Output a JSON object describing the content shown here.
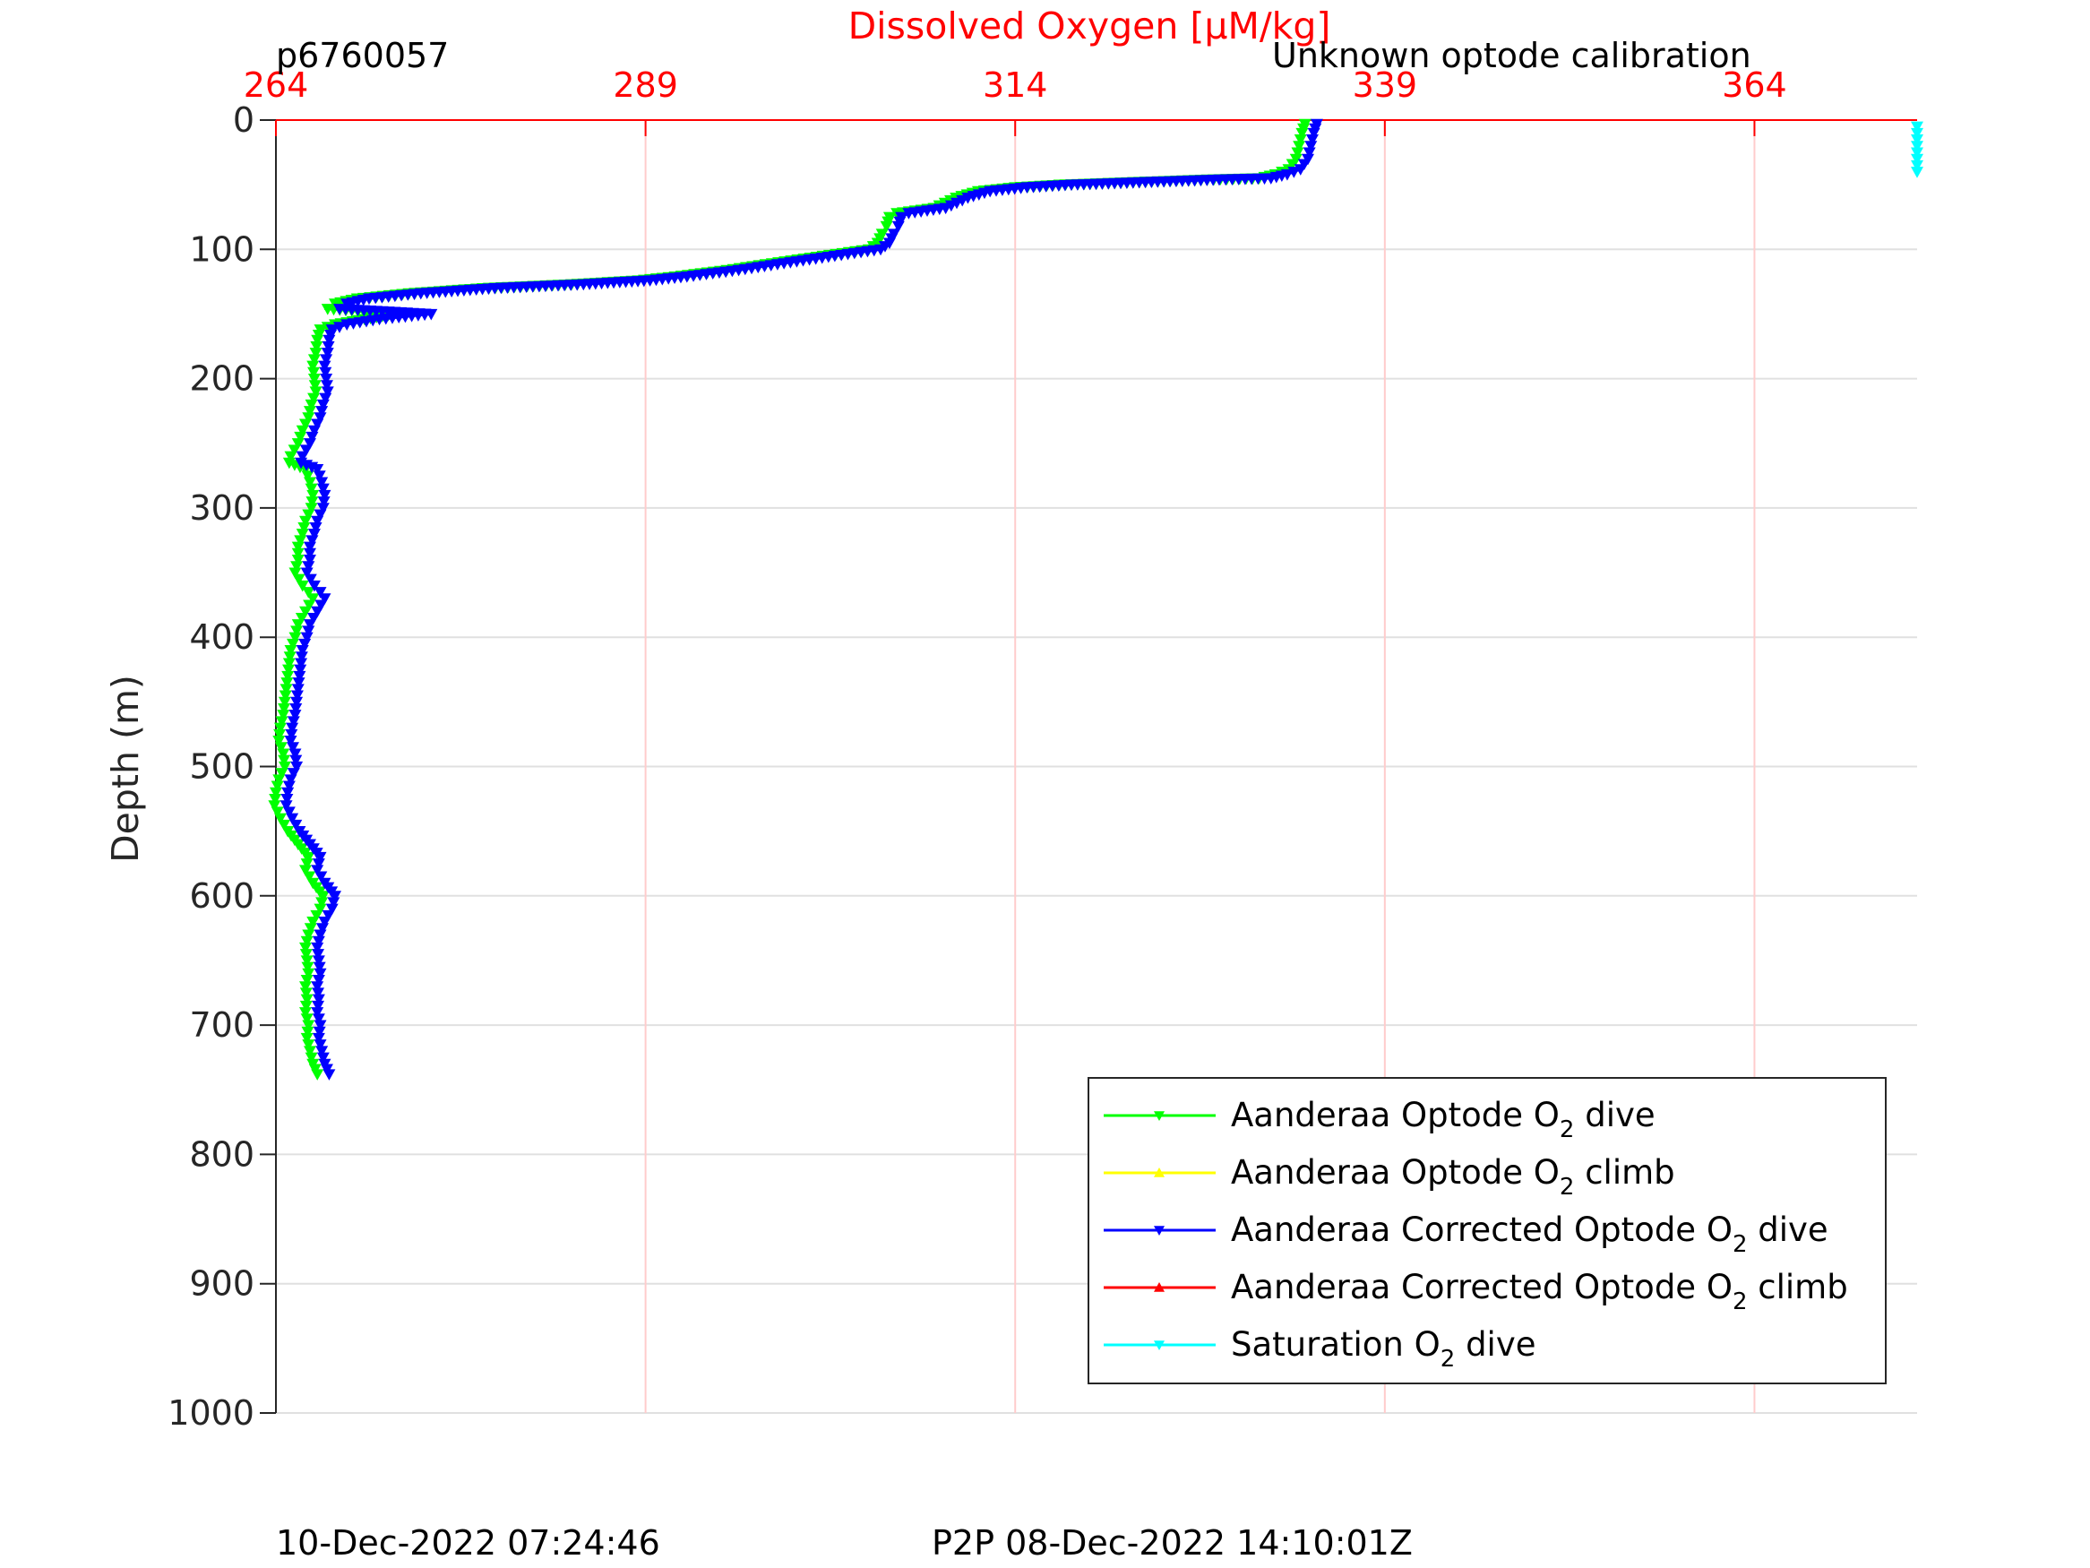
{
  "header": {
    "profile_id": "p6760057",
    "calibration_note": "Unknown optode calibration"
  },
  "footer": {
    "timestamp": "10-Dec-2022 07:24:46",
    "p2p": "P2P 08-Dec-2022 14:10:01Z"
  },
  "colors": {
    "top_axis": "#ff0000",
    "grid": "#e0e0e0",
    "top_grid": "#ffcccc",
    "axis": "#262626"
  },
  "chart_data": {
    "type": "line",
    "title": "",
    "xlabel_top": "Dissolved Oxygen [μM/kg]",
    "ylabel": "Depth (m)",
    "xlim": [
      264,
      375
    ],
    "ylim": [
      1000,
      0
    ],
    "y_reversed": true,
    "x_ticks": [
      264,
      289,
      314,
      339,
      364
    ],
    "x_tick_labels": [
      "264",
      "289",
      "314",
      "339",
      "364"
    ],
    "y_ticks": [
      0,
      100,
      200,
      300,
      400,
      500,
      600,
      700,
      800,
      900,
      1000
    ],
    "y_tick_labels": [
      "0",
      "100",
      "200",
      "300",
      "400",
      "500",
      "600",
      "700",
      "800",
      "900",
      "1000"
    ],
    "grid": true,
    "legend_position": "bottom-right",
    "series": [
      {
        "name": "Aanderaa Optode O2 dive",
        "legend_main": "Aanderaa Optode O",
        "legend_sub": "2",
        "legend_tail": " dive",
        "color": "#00ff00",
        "marker": "triangle-down",
        "points": [
          [
            333.6,
            3
          ],
          [
            333.4,
            10
          ],
          [
            333.2,
            20
          ],
          [
            333.0,
            30
          ],
          [
            332.5,
            38
          ],
          [
            331.6,
            42
          ],
          [
            330.5,
            45
          ],
          [
            327.0,
            46
          ],
          [
            322.0,
            48
          ],
          [
            317.0,
            50
          ],
          [
            314.0,
            52
          ],
          [
            311.5,
            55
          ],
          [
            310.0,
            60
          ],
          [
            308.5,
            68
          ],
          [
            306.0,
            72
          ],
          [
            305.5,
            75
          ],
          [
            305.3,
            82
          ],
          [
            305.0,
            88
          ],
          [
            304.7,
            95
          ],
          [
            304.1,
            100
          ],
          [
            301.0,
            105
          ],
          [
            298.0,
            110
          ],
          [
            294.5,
            116
          ],
          [
            291.0,
            121
          ],
          [
            288.5,
            124
          ],
          [
            284.0,
            127
          ],
          [
            278.0,
            130
          ],
          [
            273.0,
            134
          ],
          [
            269.5,
            138
          ],
          [
            268.0,
            142
          ],
          [
            267.5,
            146
          ],
          [
            272.0,
            150
          ],
          [
            270.0,
            154
          ],
          [
            268.0,
            158
          ],
          [
            267.0,
            162
          ],
          [
            266.8,
            170
          ],
          [
            266.7,
            180
          ],
          [
            266.5,
            190
          ],
          [
            266.6,
            200
          ],
          [
            266.7,
            210
          ],
          [
            266.4,
            220
          ],
          [
            266.2,
            230
          ],
          [
            265.8,
            240
          ],
          [
            265.5,
            250
          ],
          [
            265.0,
            260
          ],
          [
            264.9,
            265
          ],
          [
            266.0,
            270
          ],
          [
            266.3,
            280
          ],
          [
            266.5,
            290
          ],
          [
            266.4,
            300
          ],
          [
            266.0,
            310
          ],
          [
            265.8,
            320
          ],
          [
            265.5,
            330
          ],
          [
            265.5,
            340
          ],
          [
            265.3,
            350
          ],
          [
            265.8,
            360
          ],
          [
            266.2,
            365
          ],
          [
            266.5,
            370
          ],
          [
            266.0,
            380
          ],
          [
            265.5,
            390
          ],
          [
            265.3,
            400
          ],
          [
            265.0,
            410
          ],
          [
            264.9,
            420
          ],
          [
            264.8,
            430
          ],
          [
            264.7,
            440
          ],
          [
            264.6,
            450
          ],
          [
            264.5,
            460
          ],
          [
            264.3,
            470
          ],
          [
            264.2,
            480
          ],
          [
            264.5,
            490
          ],
          [
            264.6,
            500
          ],
          [
            264.2,
            510
          ],
          [
            264.0,
            520
          ],
          [
            263.9,
            530
          ],
          [
            264.3,
            540
          ],
          [
            264.8,
            550
          ],
          [
            265.5,
            560
          ],
          [
            266.2,
            570
          ],
          [
            266.0,
            580
          ],
          [
            266.5,
            590
          ],
          [
            267.2,
            600
          ],
          [
            267.0,
            610
          ],
          [
            266.5,
            620
          ],
          [
            266.2,
            630
          ],
          [
            266.0,
            640
          ],
          [
            266.1,
            650
          ],
          [
            266.2,
            660
          ],
          [
            266.0,
            670
          ],
          [
            266.1,
            680
          ],
          [
            266.0,
            690
          ],
          [
            266.2,
            700
          ],
          [
            266.1,
            710
          ],
          [
            266.3,
            720
          ],
          [
            266.5,
            730
          ],
          [
            266.8,
            738
          ]
        ]
      },
      {
        "name": "Aanderaa Optode O2 climb",
        "legend_main": "Aanderaa Optode O",
        "legend_sub": "2",
        "legend_tail": " climb",
        "color": "#ffff00",
        "marker": "triangle-up",
        "points": []
      },
      {
        "name": "Aanderaa Corrected Optode O2 dive",
        "legend_main": "Aanderaa Corrected Optode O",
        "legend_sub": "2",
        "legend_tail": " dive",
        "color": "#0000ff",
        "marker": "triangle-down",
        "points": [
          [
            334.4,
            3
          ],
          [
            334.2,
            10
          ],
          [
            334.0,
            20
          ],
          [
            333.8,
            30
          ],
          [
            333.3,
            38
          ],
          [
            332.4,
            42
          ],
          [
            331.3,
            45
          ],
          [
            327.8,
            46
          ],
          [
            322.8,
            48
          ],
          [
            317.8,
            50
          ],
          [
            314.8,
            52
          ],
          [
            312.3,
            55
          ],
          [
            310.8,
            60
          ],
          [
            309.3,
            68
          ],
          [
            306.8,
            72
          ],
          [
            306.3,
            75
          ],
          [
            306.1,
            82
          ],
          [
            305.8,
            88
          ],
          [
            305.5,
            95
          ],
          [
            304.9,
            100
          ],
          [
            301.8,
            105
          ],
          [
            298.8,
            110
          ],
          [
            295.3,
            116
          ],
          [
            291.8,
            121
          ],
          [
            289.3,
            124
          ],
          [
            284.8,
            127
          ],
          [
            278.8,
            130
          ],
          [
            273.8,
            134
          ],
          [
            270.3,
            138
          ],
          [
            268.8,
            142
          ],
          [
            268.3,
            146
          ],
          [
            274.5,
            150
          ],
          [
            271.0,
            154
          ],
          [
            268.8,
            158
          ],
          [
            267.8,
            162
          ],
          [
            267.6,
            170
          ],
          [
            267.5,
            180
          ],
          [
            267.3,
            190
          ],
          [
            267.4,
            200
          ],
          [
            267.5,
            210
          ],
          [
            267.2,
            220
          ],
          [
            267.0,
            230
          ],
          [
            266.6,
            240
          ],
          [
            266.3,
            250
          ],
          [
            265.8,
            260
          ],
          [
            265.7,
            265
          ],
          [
            266.8,
            270
          ],
          [
            267.1,
            280
          ],
          [
            267.3,
            290
          ],
          [
            267.2,
            300
          ],
          [
            266.8,
            310
          ],
          [
            266.6,
            320
          ],
          [
            266.3,
            330
          ],
          [
            266.3,
            340
          ],
          [
            266.1,
            350
          ],
          [
            266.6,
            360
          ],
          [
            267.0,
            365
          ],
          [
            267.3,
            370
          ],
          [
            266.8,
            380
          ],
          [
            266.3,
            390
          ],
          [
            266.1,
            400
          ],
          [
            265.8,
            410
          ],
          [
            265.7,
            420
          ],
          [
            265.6,
            430
          ],
          [
            265.5,
            440
          ],
          [
            265.4,
            450
          ],
          [
            265.3,
            460
          ],
          [
            265.1,
            470
          ],
          [
            265.0,
            480
          ],
          [
            265.3,
            490
          ],
          [
            265.4,
            500
          ],
          [
            265.0,
            510
          ],
          [
            264.8,
            520
          ],
          [
            264.7,
            530
          ],
          [
            265.1,
            540
          ],
          [
            265.6,
            550
          ],
          [
            266.3,
            560
          ],
          [
            267.0,
            570
          ],
          [
            266.8,
            580
          ],
          [
            267.3,
            590
          ],
          [
            268.0,
            600
          ],
          [
            267.8,
            610
          ],
          [
            267.3,
            620
          ],
          [
            267.0,
            630
          ],
          [
            266.8,
            640
          ],
          [
            266.9,
            650
          ],
          [
            267.0,
            660
          ],
          [
            266.8,
            670
          ],
          [
            266.9,
            680
          ],
          [
            266.8,
            690
          ],
          [
            267.0,
            700
          ],
          [
            266.9,
            710
          ],
          [
            267.1,
            720
          ],
          [
            267.3,
            730
          ],
          [
            267.6,
            738
          ]
        ]
      },
      {
        "name": "Aanderaa Corrected Optode O2 climb",
        "legend_main": "Aanderaa Corrected Optode O",
        "legend_sub": "2",
        "legend_tail": " climb",
        "color": "#ff0000",
        "marker": "triangle-up",
        "points": []
      },
      {
        "name": "Saturation O2 dive",
        "legend_main": "Saturation O",
        "legend_sub": "2",
        "legend_tail": " dive",
        "color": "#00ffff",
        "marker": "triangle-down",
        "points": [
          [
            375,
            5
          ],
          [
            375,
            10
          ],
          [
            375,
            15
          ],
          [
            375,
            20
          ],
          [
            375,
            25
          ],
          [
            375,
            30
          ],
          [
            375,
            35
          ],
          [
            375,
            40
          ]
        ]
      }
    ]
  }
}
